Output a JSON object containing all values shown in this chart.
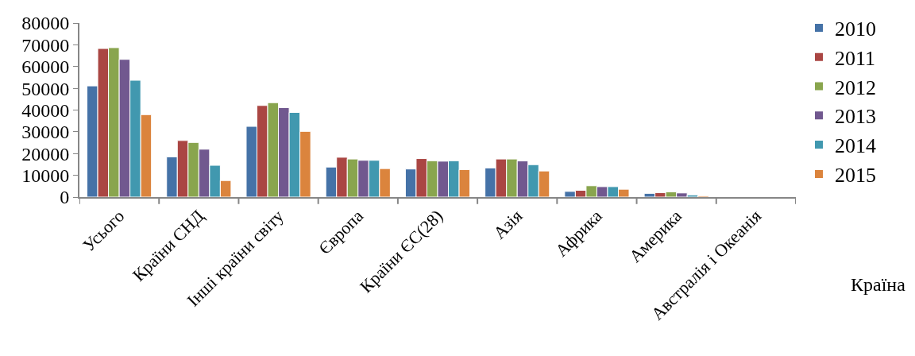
{
  "chart_data": {
    "type": "bar",
    "xlabel": "Країна",
    "categories": [
      "Усього",
      "Країни СНД",
      "Інші країни світу",
      "Європа",
      "Країни ЄС(28)",
      "Азія",
      "Африка",
      "Америка",
      "Австралія і Океанія"
    ],
    "series": [
      {
        "name": "2010",
        "color": "#4572a7",
        "values": [
          51100,
          18500,
          32500,
          13800,
          12900,
          13400,
          2600,
          1700,
          null
        ]
      },
      {
        "name": "2011",
        "color": "#aa4643",
        "values": [
          68300,
          26000,
          42100,
          18300,
          17700,
          17500,
          3100,
          2000,
          null
        ]
      },
      {
        "name": "2012",
        "color": "#89a54e",
        "values": [
          68700,
          25100,
          43400,
          17500,
          16700,
          17500,
          5200,
          2400,
          null
        ]
      },
      {
        "name": "2013",
        "color": "#71588f",
        "values": [
          63300,
          22000,
          41100,
          16900,
          16500,
          16600,
          4800,
          1900,
          null
        ]
      },
      {
        "name": "2014",
        "color": "#4198af",
        "values": [
          53700,
          14600,
          38900,
          16900,
          16700,
          14900,
          4800,
          1000,
          null
        ]
      },
      {
        "name": "2015",
        "color": "#db843d",
        "values": [
          37900,
          7600,
          30200,
          13100,
          12600,
          12000,
          3600,
          600,
          null
        ]
      }
    ],
    "ylim": [
      0,
      80000
    ],
    "yticks": [
      0,
      10000,
      20000,
      30000,
      40000,
      50000,
      60000,
      70000,
      80000
    ],
    "legend": "right"
  }
}
